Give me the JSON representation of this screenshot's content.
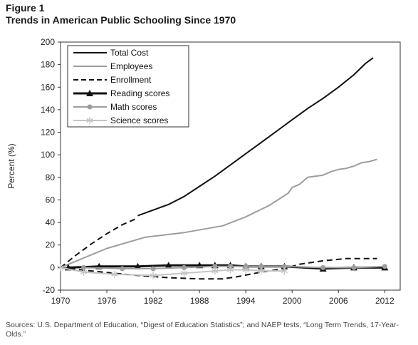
{
  "figure": {
    "label": "Figure 1",
    "title": "Trends in American Public Schooling Since 1970",
    "source": "Sources: U.S. Department of Education, “Digest of Education Statistics”; and NAEP tests, “Long Term Trends, 17-Year-Olds.”"
  },
  "chart_data": {
    "type": "line",
    "title": "Trends in American Public Schooling Since 1970",
    "ylabel": "Percent (%)",
    "xlabel": "",
    "xlim": [
      1970,
      2014
    ],
    "ylim": [
      -20,
      200
    ],
    "x_ticks": [
      1970,
      1976,
      1982,
      1988,
      1994,
      2000,
      2006,
      2012
    ],
    "y_ticks": [
      -20,
      0,
      20,
      40,
      60,
      80,
      100,
      120,
      140,
      160,
      180,
      200
    ],
    "grid": false,
    "legend_position": "top-left",
    "series": [
      {
        "name": "Total Cost",
        "color": "#111111",
        "dash": "solid",
        "marker": "none",
        "points": [
          [
            1980,
            46
          ],
          [
            1982,
            51
          ],
          [
            1984,
            56
          ],
          [
            1986,
            63
          ],
          [
            1988,
            72
          ],
          [
            1990,
            81
          ],
          [
            1992,
            91
          ],
          [
            1994,
            101
          ],
          [
            1996,
            111
          ],
          [
            1998,
            121
          ],
          [
            2000,
            131
          ],
          [
            2002,
            141
          ],
          [
            2004,
            150
          ],
          [
            2006,
            160
          ],
          [
            2008,
            171
          ],
          [
            2009.5,
            181
          ],
          [
            2010.5,
            186
          ]
        ]
      },
      {
        "name": "Employees",
        "color": "#9d9d9d",
        "dash": "solid",
        "marker": "none",
        "points": [
          [
            1970,
            0
          ],
          [
            1976,
            17
          ],
          [
            1981,
            27
          ],
          [
            1986,
            31
          ],
          [
            1991,
            37
          ],
          [
            1994,
            45
          ],
          [
            1997,
            55
          ],
          [
            1999.5,
            66
          ],
          [
            2000,
            71
          ],
          [
            2001,
            74
          ],
          [
            2002,
            80
          ],
          [
            2003,
            81
          ],
          [
            2004,
            82
          ],
          [
            2005,
            85
          ],
          [
            2006,
            87
          ],
          [
            2007,
            88
          ],
          [
            2008,
            90
          ],
          [
            2009,
            93
          ],
          [
            2010,
            94
          ],
          [
            2011,
            96
          ]
        ]
      },
      {
        "name": "Enrollment",
        "color": "#111111",
        "dash": "dashed",
        "marker": "none",
        "points": [
          [
            1970,
            0
          ],
          [
            1972,
            11
          ],
          [
            1974,
            21
          ],
          [
            1976,
            30
          ],
          [
            1978,
            38
          ],
          [
            1980,
            44
          ],
          [
            1974,
            -3
          ],
          [
            1977,
            -5
          ],
          [
            1980,
            -7
          ],
          [
            1984,
            -9
          ],
          [
            1988,
            -10
          ],
          [
            1991,
            -10
          ],
          [
            1993,
            -8
          ],
          [
            1996,
            -4
          ],
          [
            1999,
            -1
          ],
          [
            2001,
            3
          ],
          [
            2004,
            6
          ],
          [
            2007,
            8
          ],
          [
            2009,
            8
          ],
          [
            2011,
            8
          ]
        ]
      },
      {
        "name": "Reading scores",
        "color": "#111111",
        "dash": "solid",
        "marker": "triangle",
        "points": [
          [
            1971,
            0
          ],
          [
            1975,
            1
          ],
          [
            1980,
            1
          ],
          [
            1984,
            2
          ],
          [
            1988,
            2
          ],
          [
            1990,
            2
          ],
          [
            1992,
            2
          ],
          [
            1994,
            1
          ],
          [
            1996,
            1
          ],
          [
            1999,
            1
          ],
          [
            2004,
            -1
          ],
          [
            2008,
            0
          ],
          [
            2012,
            0
          ]
        ]
      },
      {
        "name": "Math scores",
        "color": "#9d9d9d",
        "dash": "solid",
        "marker": "circle",
        "points": [
          [
            1973,
            0
          ],
          [
            1978,
            -1
          ],
          [
            1982,
            -1
          ],
          [
            1986,
            0
          ],
          [
            1990,
            1
          ],
          [
            1992,
            1
          ],
          [
            1994,
            1
          ],
          [
            1996,
            1
          ],
          [
            1999,
            1
          ],
          [
            2004,
            0
          ],
          [
            2008,
            0
          ],
          [
            2012,
            1
          ]
        ]
      },
      {
        "name": "Science scores",
        "color": "#c4c4c4",
        "dash": "solid",
        "marker": "asterisk",
        "points": [
          [
            1970,
            0
          ],
          [
            1973,
            -4
          ],
          [
            1977,
            -6
          ],
          [
            1982,
            -7
          ],
          [
            1986,
            -5
          ],
          [
            1990,
            -3
          ],
          [
            1992,
            -2
          ],
          [
            1994,
            -2
          ],
          [
            1996,
            -3
          ],
          [
            1999,
            -3
          ]
        ]
      }
    ]
  }
}
